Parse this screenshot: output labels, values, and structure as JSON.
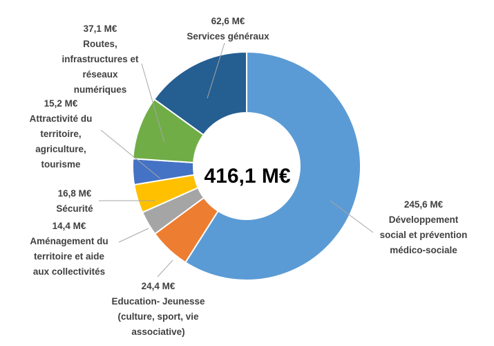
{
  "chart_data": {
    "type": "pie",
    "center_label": "416,1 M€",
    "slices": [
      {
        "name_lines": [
          "Développement",
          "social et prévention",
          "médico-sociale"
        ],
        "value_label": "245,6 M€",
        "value": 245.6,
        "color": "#5b9bd5"
      },
      {
        "name_lines": [
          "Education- Jeunesse",
          "(culture, sport, vie",
          "associative)"
        ],
        "value_label": "24,4 M€",
        "value": 24.4,
        "color": "#ed7d31"
      },
      {
        "name_lines": [
          "Aménagement du",
          "territoire et aide",
          "aux collectivités"
        ],
        "value_label": "14,4 M€",
        "value": 14.4,
        "color": "#a5a5a5"
      },
      {
        "name_lines": [
          "Sécurité"
        ],
        "value_label": "16,8 M€",
        "value": 16.8,
        "color": "#ffc000"
      },
      {
        "name_lines": [
          "Attractivité du",
          "territoire,",
          "agriculture,",
          "tourisme"
        ],
        "value_label": "15,2 M€",
        "value": 15.2,
        "color": "#4472c4"
      },
      {
        "name_lines": [
          "Routes,",
          "infrastructures et",
          "réseaux",
          "numériques"
        ],
        "value_label": "37,1 M€",
        "value": 37.1,
        "color": "#70ad47"
      },
      {
        "name_lines": [
          "Services généraux"
        ],
        "value_label": "62,6 M€",
        "value": 62.6,
        "color": "#255e91"
      }
    ]
  }
}
